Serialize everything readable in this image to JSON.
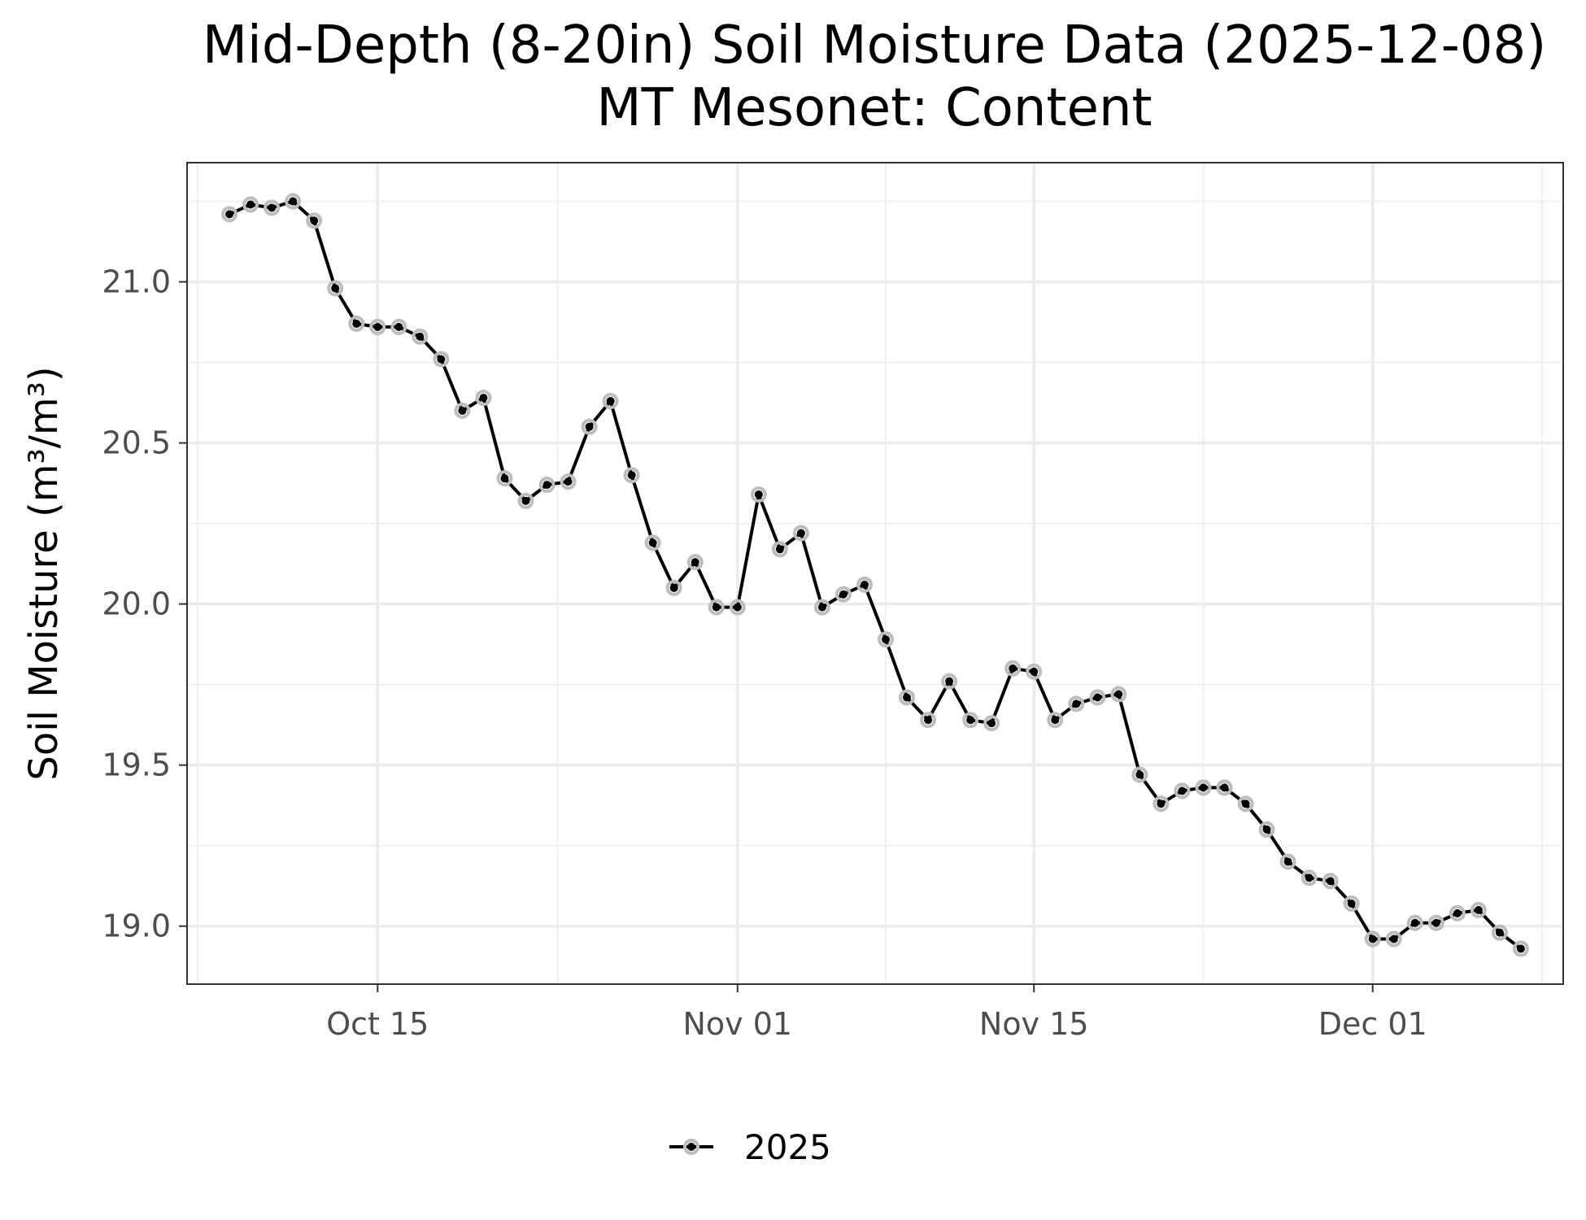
{
  "chart_data": {
    "type": "line",
    "title": "Mid-Depth (8-20in) Soil Moisture Data (2025-12-08)",
    "subtitle": "MT Mesonet: Content",
    "xlabel": "",
    "ylabel": "Soil Moisture (m³/m³)",
    "x_range": [
      "2025-10-06",
      "2025-12-10"
    ],
    "ylim": [
      18.82,
      21.37
    ],
    "y_ticks": [
      19.0,
      19.5,
      20.0,
      20.5,
      21.0
    ],
    "y_tick_labels": [
      "19.0",
      "19.5",
      "20.0",
      "20.5",
      "21.0"
    ],
    "x_ticks": [
      "2025-10-15",
      "2025-11-01",
      "2025-11-15",
      "2025-12-01"
    ],
    "x_tick_labels": [
      "Oct 15",
      "Nov 01",
      "Nov 15",
      "Dec 01"
    ],
    "grid": true,
    "legend_position": "bottom",
    "series": [
      {
        "name": "2025",
        "color": "#000000",
        "x": [
          "2025-10-08",
          "2025-10-09",
          "2025-10-10",
          "2025-10-11",
          "2025-10-12",
          "2025-10-13",
          "2025-10-14",
          "2025-10-15",
          "2025-10-16",
          "2025-10-17",
          "2025-10-18",
          "2025-10-19",
          "2025-10-20",
          "2025-10-21",
          "2025-10-22",
          "2025-10-23",
          "2025-10-24",
          "2025-10-25",
          "2025-10-26",
          "2025-10-27",
          "2025-10-28",
          "2025-10-29",
          "2025-10-30",
          "2025-10-31",
          "2025-11-01",
          "2025-11-02",
          "2025-11-03",
          "2025-11-04",
          "2025-11-05",
          "2025-11-06",
          "2025-11-07",
          "2025-11-08",
          "2025-11-09",
          "2025-11-10",
          "2025-11-11",
          "2025-11-12",
          "2025-11-13",
          "2025-11-14",
          "2025-11-15",
          "2025-11-16",
          "2025-11-17",
          "2025-11-18",
          "2025-11-19",
          "2025-11-20",
          "2025-11-21",
          "2025-11-22",
          "2025-11-23",
          "2025-11-24",
          "2025-11-25",
          "2025-11-26",
          "2025-11-27",
          "2025-11-28",
          "2025-11-29",
          "2025-11-30",
          "2025-12-01",
          "2025-12-02",
          "2025-12-03",
          "2025-12-04",
          "2025-12-05",
          "2025-12-06",
          "2025-12-07",
          "2025-12-08"
        ],
        "values": [
          21.21,
          21.24,
          21.23,
          21.25,
          21.19,
          20.98,
          20.87,
          20.86,
          20.86,
          20.83,
          20.76,
          20.6,
          20.64,
          20.39,
          20.32,
          20.37,
          20.38,
          20.55,
          20.63,
          20.4,
          20.19,
          20.05,
          20.13,
          19.99,
          19.99,
          20.34,
          20.17,
          20.22,
          19.99,
          20.03,
          20.06,
          19.89,
          19.71,
          19.64,
          19.76,
          19.64,
          19.63,
          19.8,
          19.79,
          19.64,
          19.69,
          19.71,
          19.72,
          19.47,
          19.38,
          19.42,
          19.43,
          19.43,
          19.38,
          19.3,
          19.2,
          19.15,
          19.14,
          19.07,
          18.96,
          18.96,
          19.01,
          19.01,
          19.04,
          19.05,
          18.98,
          18.93
        ]
      }
    ]
  }
}
